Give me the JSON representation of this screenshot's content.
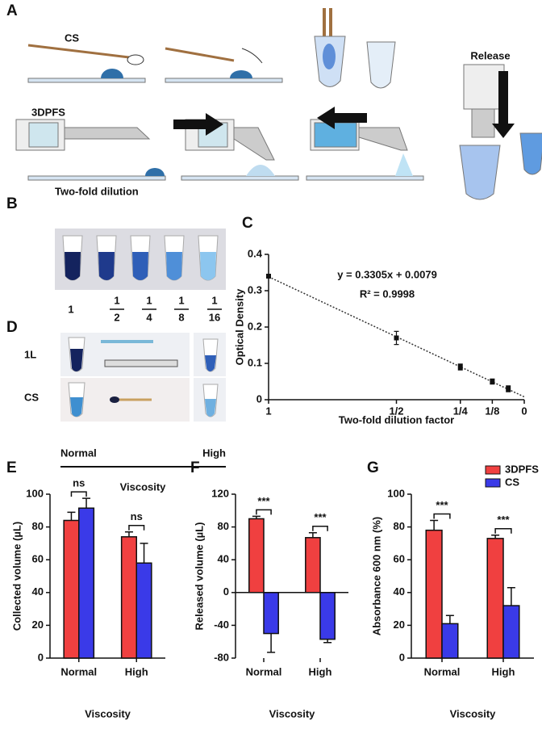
{
  "panels": {
    "a": {
      "label": "A",
      "cs": "CS",
      "device": "3DPFS",
      "release": "Release"
    },
    "b": {
      "label": "B",
      "title": "Two-fold dilution",
      "dilutions": [
        {
          "numerator": "1"
        },
        {
          "numerator": "1",
          "denominator": "2"
        },
        {
          "numerator": "1",
          "denominator": "4"
        },
        {
          "numerator": "1",
          "denominator": "8"
        },
        {
          "numerator": "1",
          "denominator": "16"
        }
      ]
    },
    "d": {
      "label": "D",
      "rows": [
        "1L",
        "CS"
      ],
      "normal": "Normal",
      "high": "High",
      "axis": "Viscosity"
    }
  },
  "chart_data": [
    {
      "type": "scatter",
      "panel_label": "C",
      "x_label": "Two-fold dilution factor",
      "y_label": "Optical Density",
      "x": [
        1,
        0.5,
        0.25,
        0.125,
        0.0625
      ],
      "values": [
        0.34,
        0.17,
        0.09,
        0.05,
        0.03
      ],
      "errors": [
        0.005,
        0.018,
        0.008,
        0.007,
        0.008
      ],
      "color": "#111111",
      "trendline": {
        "slope": 0.3305,
        "intercept": 0.0079
      },
      "annotations": [
        "y = 0.3305x + 0.0079",
        "R² = 0.9998"
      ],
      "xlim": [
        1,
        0
      ],
      "xticks": [
        1,
        {
          "value": 0.5,
          "label": "1/2"
        },
        {
          "value": 0.25,
          "label": "1/4"
        },
        {
          "value": 0.125,
          "label": "1/8"
        },
        0
      ],
      "ylim": [
        0,
        0.4
      ],
      "yticks": [
        0,
        0.1,
        0.2,
        0.3,
        0.4
      ]
    },
    {
      "type": "bar",
      "panel_label": "E",
      "x_label": "Viscosity",
      "y_label": "Collected volume (µL)",
      "categories": [
        "Normal",
        "High"
      ],
      "series": [
        {
          "name": "3DPFS",
          "color": "#f04040",
          "values": [
            84,
            74
          ],
          "errors": [
            5,
            3
          ]
        },
        {
          "name": "CS",
          "color": "#3a3ae8",
          "values": [
            91.5,
            58
          ],
          "errors": [
            6,
            12
          ]
        }
      ],
      "significance": [
        "ns",
        "ns"
      ],
      "ylim": [
        0,
        100
      ],
      "yticks": [
        0,
        20,
        40,
        60,
        80,
        100
      ]
    },
    {
      "type": "bar",
      "panel_label": "F",
      "x_label": "Viscosity",
      "y_label": "Released volume (µL)",
      "categories": [
        "Normal",
        "High"
      ],
      "series": [
        {
          "name": "3DPFS",
          "color": "#f04040",
          "values": [
            90,
            67
          ],
          "errors": [
            3,
            6
          ]
        },
        {
          "name": "CS",
          "color": "#3a3ae8",
          "values": [
            -50,
            -57
          ],
          "errors": [
            23,
            4
          ]
        }
      ],
      "significance": [
        "***",
        "***"
      ],
      "ylim": [
        -80,
        120
      ],
      "yticks": [
        -80,
        -40,
        0,
        40,
        80,
        120
      ]
    },
    {
      "type": "bar",
      "panel_label": "G",
      "x_label": "Viscosity",
      "y_label": "Absorbance 600 nm (%)",
      "categories": [
        "Normal",
        "High"
      ],
      "series": [
        {
          "name": "3DPFS",
          "color": "#f04040",
          "values": [
            78,
            73
          ],
          "errors": [
            6,
            2
          ]
        },
        {
          "name": "CS",
          "color": "#3a3ae8",
          "values": [
            21,
            32
          ],
          "errors": [
            5,
            11
          ]
        }
      ],
      "significance": [
        "***",
        "***"
      ],
      "legend": "upper right",
      "ylim": [
        0,
        100
      ],
      "yticks": [
        0,
        20,
        40,
        60,
        80,
        100
      ]
    }
  ]
}
